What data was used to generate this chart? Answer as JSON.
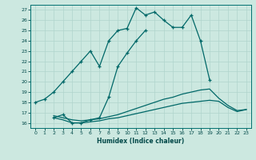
{
  "xlabel": "Humidex (Indice chaleur)",
  "bg_color": "#cce8e0",
  "grid_color": "#b0d4cc",
  "line_color": "#006868",
  "xlim": [
    -0.5,
    23.5
  ],
  "ylim": [
    15.5,
    27.5
  ],
  "xticks": [
    0,
    1,
    2,
    3,
    4,
    5,
    6,
    7,
    8,
    9,
    10,
    11,
    12,
    13,
    14,
    15,
    16,
    17,
    18,
    19,
    20,
    21,
    22,
    23
  ],
  "yticks": [
    16,
    17,
    18,
    19,
    20,
    21,
    22,
    23,
    24,
    25,
    26,
    27
  ],
  "line1_x": [
    0,
    1,
    2,
    3,
    4,
    5,
    6,
    7,
    8,
    9,
    10,
    11,
    12,
    13,
    14,
    15,
    16,
    17,
    18,
    19
  ],
  "line1_y": [
    18.0,
    18.3,
    19.0,
    20.0,
    21.0,
    22.0,
    23.0,
    21.5,
    24.0,
    25.0,
    25.2,
    27.2,
    26.5,
    26.8,
    26.0,
    25.3,
    25.3,
    26.5,
    24.0,
    20.2
  ],
  "line2_x": [
    2,
    3,
    4,
    5,
    6,
    7,
    8,
    9,
    10,
    11,
    12
  ],
  "line2_y": [
    16.5,
    16.8,
    16.0,
    16.0,
    16.3,
    16.5,
    18.5,
    21.5,
    22.8,
    24.0,
    25.0
  ],
  "line3_x": [
    2,
    3,
    4,
    5,
    6,
    7,
    8,
    9,
    10,
    11,
    12,
    13,
    14,
    15,
    16,
    17,
    18,
    19,
    20,
    21,
    22,
    23
  ],
  "line3_y": [
    16.7,
    16.5,
    16.3,
    16.2,
    16.3,
    16.4,
    16.6,
    16.8,
    17.1,
    17.4,
    17.7,
    18.0,
    18.3,
    18.5,
    18.8,
    19.0,
    19.2,
    19.3,
    18.4,
    17.7,
    17.2,
    17.3
  ],
  "line4_x": [
    2,
    3,
    4,
    5,
    6,
    7,
    8,
    9,
    10,
    11,
    12,
    13,
    14,
    15,
    16,
    17,
    18,
    19,
    20,
    21,
    22,
    23
  ],
  "line4_y": [
    16.5,
    16.3,
    16.0,
    16.0,
    16.1,
    16.2,
    16.4,
    16.5,
    16.7,
    16.9,
    17.1,
    17.3,
    17.5,
    17.7,
    17.9,
    18.0,
    18.1,
    18.2,
    18.1,
    17.5,
    17.1,
    17.3
  ]
}
